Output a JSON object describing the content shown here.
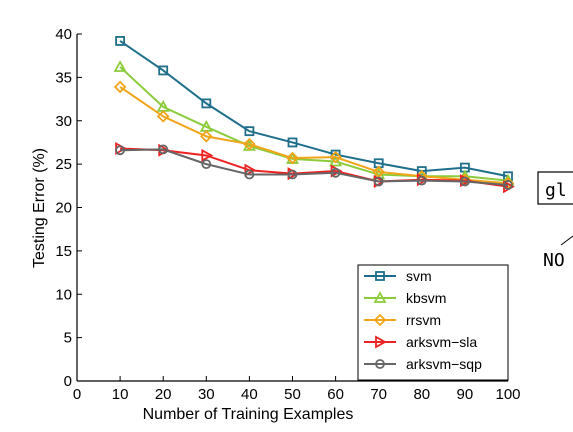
{
  "chart_data": {
    "type": "line",
    "title": "",
    "xlabel": "Number of Training Examples",
    "ylabel": "Testing Error (%)",
    "xlim": [
      0,
      100
    ],
    "ylim": [
      0,
      40
    ],
    "xticks": [
      0,
      10,
      20,
      30,
      40,
      50,
      60,
      70,
      80,
      90,
      100
    ],
    "yticks": [
      0,
      5,
      10,
      15,
      20,
      25,
      30,
      35,
      40
    ],
    "x": [
      10,
      20,
      30,
      40,
      50,
      60,
      70,
      80,
      90,
      100
    ],
    "legend_position": "lower-right",
    "series": [
      {
        "name": "svm",
        "color": "#1f6f8b",
        "marker": "square",
        "values": [
          39.2,
          35.8,
          32.0,
          28.8,
          27.5,
          26.1,
          25.1,
          24.2,
          24.6,
          23.6
        ]
      },
      {
        "name": "kbsvm",
        "color": "#8ccc3c",
        "marker": "triangle-up",
        "values": [
          36.2,
          31.6,
          29.3,
          27.1,
          25.6,
          25.3,
          23.8,
          23.6,
          23.6,
          23.1
        ]
      },
      {
        "name": "rrsvm",
        "color": "#f0a418",
        "marker": "diamond",
        "values": [
          33.9,
          30.5,
          28.2,
          27.3,
          25.7,
          25.8,
          24.1,
          23.6,
          23.2,
          22.8
        ]
      },
      {
        "name": "arksvm−sla",
        "color": "#ee2222",
        "marker": "triangle-right",
        "values": [
          26.8,
          26.6,
          26.0,
          24.3,
          23.9,
          24.2,
          23.0,
          23.2,
          23.1,
          22.4
        ]
      },
      {
        "name": "arksvm−sqp",
        "color": "#666666",
        "marker": "circle",
        "values": [
          26.6,
          26.7,
          25.0,
          23.8,
          23.8,
          24.0,
          23.0,
          23.1,
          23.0,
          22.6
        ]
      }
    ]
  },
  "side_fragments": {
    "box_text": "gl",
    "lower_text": "NO"
  }
}
